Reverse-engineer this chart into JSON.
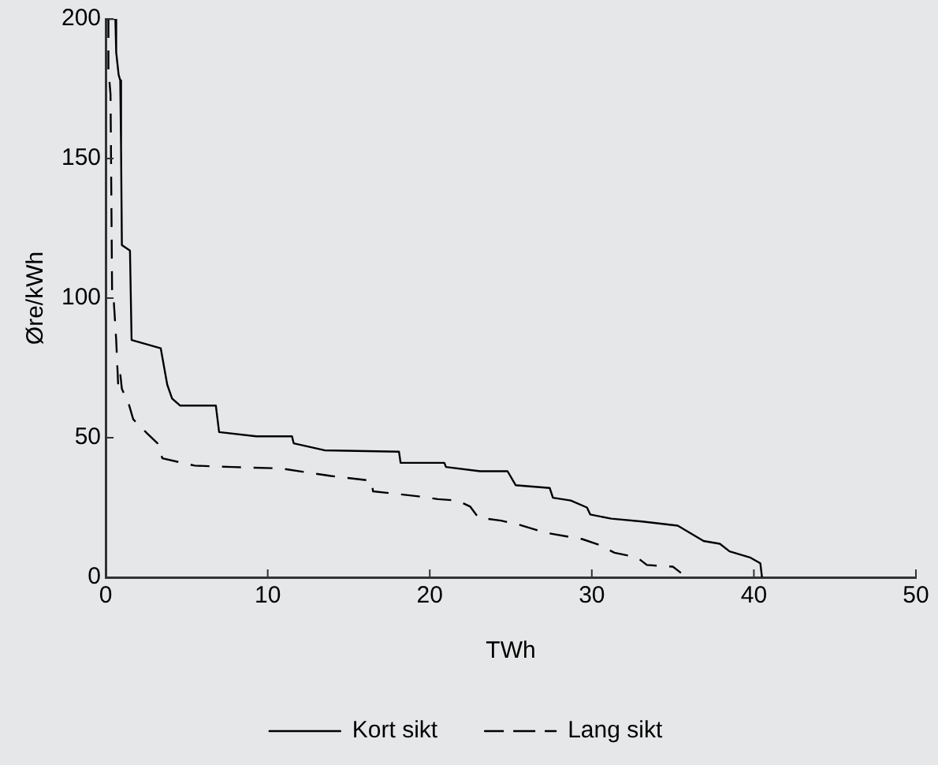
{
  "chart_data": {
    "type": "line",
    "xlabel": "TWh",
    "ylabel": "Øre/kWh",
    "xlim": [
      0,
      50
    ],
    "xticks": [
      0,
      10,
      20,
      30,
      40,
      50
    ],
    "ylim": [
      0,
      200
    ],
    "yticks": [
      0,
      50,
      100,
      150,
      200
    ],
    "grid": false,
    "legend": "bottom",
    "marker": "none",
    "series": [
      {
        "name": "Kort sikt",
        "color": "#000000",
        "line_style": "solid",
        "x": [
          0.03,
          0.6,
          0.65,
          0.8,
          0.9,
          0.95,
          1.0,
          1.5,
          1.6,
          3.4,
          3.8,
          4.1,
          4.6,
          6.8,
          7.0,
          9.3,
          11.5,
          11.6,
          13.5,
          18.1,
          18.2,
          20.9,
          21.0,
          23.1,
          24.8,
          25.3,
          27.4,
          27.6,
          28.7,
          29.7,
          29.9,
          31.2,
          33.1,
          35.3,
          36.9,
          37.9,
          38.5,
          39.8,
          40.4,
          40.5
        ],
        "values": [
          200,
          200,
          188,
          180,
          178,
          154,
          119,
          117,
          85,
          82,
          69,
          64,
          61.5,
          61.5,
          52,
          50.5,
          50.5,
          48,
          45.5,
          45,
          41,
          41,
          39.5,
          38,
          38,
          33,
          32,
          28.5,
          27.5,
          25,
          22.5,
          21,
          20,
          18.5,
          13,
          12,
          9.3,
          7,
          5,
          0
        ]
      },
      {
        "name": "Lang sikt",
        "color": "#000000",
        "line_style": "dashed",
        "x": [
          0.17,
          0.17,
          0.3,
          0.4,
          0.5,
          0.65,
          0.77,
          0.9,
          1.0,
          1.43,
          1.7,
          2.55,
          3.2,
          3.5,
          5.5,
          7.8,
          10.8,
          13.9,
          16.4,
          16.5,
          19.3,
          20.5,
          21.7,
          22.5,
          23,
          24.4,
          25.6,
          27.2,
          29.4,
          30.5,
          31.4,
          32.8,
          33.4,
          35,
          35.5
        ],
        "values": [
          200,
          182,
          173,
          100,
          99,
          85,
          69,
          73,
          67.5,
          62,
          56.6,
          51.6,
          48,
          42.6,
          40,
          39.5,
          39,
          36.3,
          34.6,
          30.8,
          29,
          28,
          27.5,
          25.3,
          21.4,
          20.3,
          18.7,
          15.9,
          13.7,
          11.5,
          8.8,
          7.1,
          4.4,
          3.8,
          1.6
        ]
      }
    ]
  }
}
